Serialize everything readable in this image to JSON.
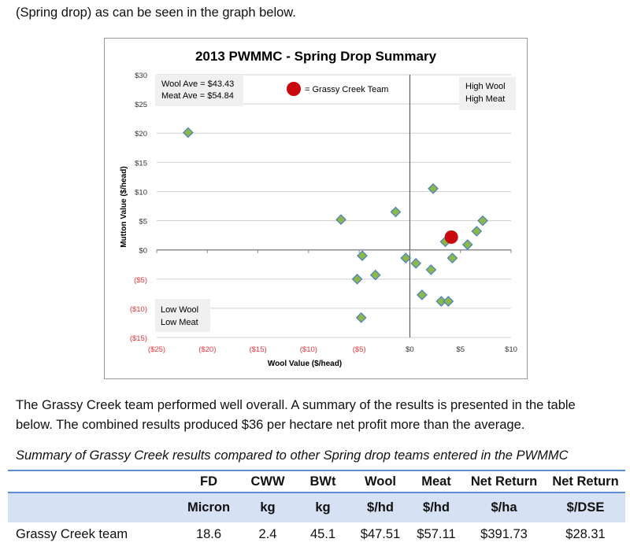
{
  "intro_line": "(Spring drop) as can be seen in the graph below.",
  "paragraph": [
    "The Grassy Creek team performed well overall.  A summary of the results is presented in the table",
    "below.  The combined results produced $36 per hectare net profit more than the average."
  ],
  "table_caption": "Summary of Grassy Creek results compared to other Spring drop teams entered in the PWMMC",
  "table": {
    "headers": [
      "",
      "FD",
      "CWW",
      "BWt",
      "Wool",
      "Meat",
      "Net Return",
      "Net Return"
    ],
    "units": [
      "",
      "Micron",
      "kg",
      "kg",
      "$/hd",
      "$/hd",
      "$/ha",
      "$/DSE"
    ],
    "rows": [
      [
        "Grassy Creek team",
        "18.6",
        "2.4",
        "45.1",
        "$47.51",
        "$57.11",
        "$391.73",
        "$28.31"
      ]
    ]
  },
  "chart_data": {
    "type": "scatter",
    "title": "2013 PWMMC - Spring Drop Summary",
    "xlabel": "Wool Value ($/head)",
    "ylabel": "Mutton Value ($/head)",
    "xlim": [
      -25,
      10
    ],
    "ylim": [
      -15,
      30
    ],
    "xticks": [
      {
        "v": -25,
        "label": "($25)"
      },
      {
        "v": -20,
        "label": "($20)"
      },
      {
        "v": -15,
        "label": "($15)"
      },
      {
        "v": -10,
        "label": "($10)"
      },
      {
        "v": -5,
        "label": "($5)"
      },
      {
        "v": 0,
        "label": "$0"
      },
      {
        "v": 5,
        "label": "$5"
      },
      {
        "v": 10,
        "label": "$10"
      }
    ],
    "yticks": [
      {
        "v": 30,
        "label": "$30"
      },
      {
        "v": 25,
        "label": "$25"
      },
      {
        "v": 20,
        "label": "$20"
      },
      {
        "v": 15,
        "label": "$15"
      },
      {
        "v": 10,
        "label": "$10"
      },
      {
        "v": 5,
        "label": "$5"
      },
      {
        "v": 0,
        "label": "$0"
      },
      {
        "v": -5,
        "label": "($5)"
      },
      {
        "v": -10,
        "label": "($10)"
      },
      {
        "v": -15,
        "label": "($15)"
      }
    ],
    "negative_color": "#e8373d",
    "point_color": "#8cb84a",
    "point_stroke": "#4a7fc0",
    "highlight_color": "#c8080d",
    "series": [
      {
        "name": "Teams",
        "points": [
          [
            -21.9,
            20.1
          ],
          [
            -6.8,
            5.2
          ],
          [
            -1.4,
            6.5
          ],
          [
            2.3,
            10.5
          ],
          [
            7.2,
            5.0
          ],
          [
            6.6,
            3.2
          ],
          [
            5.7,
            0.9
          ],
          [
            3.5,
            1.4
          ],
          [
            4.2,
            -1.4
          ],
          [
            -4.7,
            -1.0
          ],
          [
            -0.4,
            -1.4
          ],
          [
            0.6,
            -2.3
          ],
          [
            2.1,
            -3.4
          ],
          [
            -3.4,
            -4.3
          ],
          [
            -5.2,
            -5.0
          ],
          [
            1.2,
            -7.7
          ],
          [
            3.1,
            -8.8
          ],
          [
            3.8,
            -8.8
          ],
          [
            -4.8,
            -11.6
          ]
        ]
      },
      {
        "name": "Grassy Creek Team",
        "points": [
          [
            4.1,
            2.2
          ]
        ]
      }
    ],
    "annotations": {
      "averages": [
        "Wool Ave = $43.43",
        "Meat Ave = $54.84"
      ],
      "legend": "= Grassy Creek Team",
      "top_right": [
        "High Wool",
        "High Meat"
      ],
      "bottom_left": [
        "Low Wool",
        "Low Meat"
      ]
    }
  }
}
